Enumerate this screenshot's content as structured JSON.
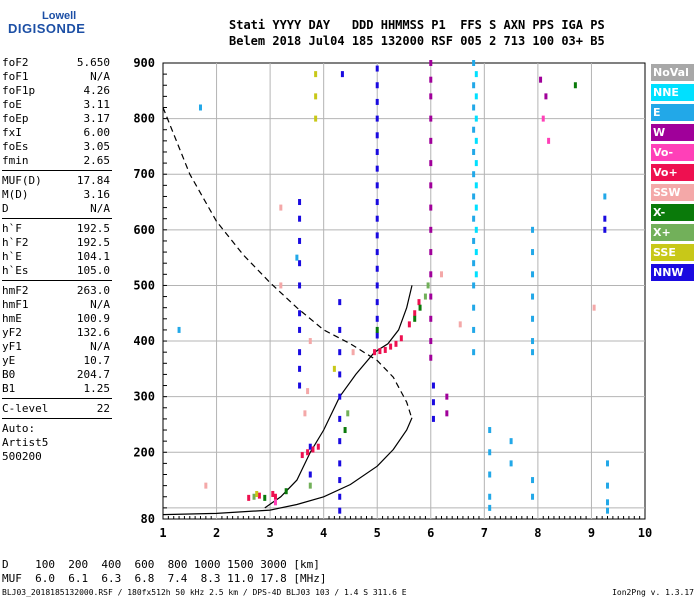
{
  "logo": {
    "top": "Lowell",
    "main": "DIGISONDE"
  },
  "header": {
    "line1": "Stati YYYY DAY   DDD HHMMSS P1  FFS S AXN PPS IGA PS",
    "line2": "Belem 2018 Jul04 185 132000 RSF 005 2 713 100 03+ B5"
  },
  "params": [
    {
      "k": "foF2",
      "v": "5.650"
    },
    {
      "k": "foF1",
      "v": "N/A"
    },
    {
      "k": "foF1p",
      "v": "4.26"
    },
    {
      "k": "foE",
      "v": "3.11"
    },
    {
      "k": "foEp",
      "v": "3.17"
    },
    {
      "k": "fxI",
      "v": "6.00"
    },
    {
      "k": "foEs",
      "v": "3.05"
    },
    {
      "k": "fmin",
      "v": "2.65"
    },
    {
      "sep": true
    },
    {
      "k": "MUF(D)",
      "v": "17.84"
    },
    {
      "k": "M(D)",
      "v": "3.16"
    },
    {
      "k": "D",
      "v": "N/A"
    },
    {
      "sep": true
    },
    {
      "k": "h`F",
      "v": "192.5"
    },
    {
      "k": "h`F2",
      "v": "192.5"
    },
    {
      "k": "h`E",
      "v": "104.1"
    },
    {
      "k": "h`Es",
      "v": "105.0"
    },
    {
      "sep": true
    },
    {
      "k": "hmF2",
      "v": "263.0"
    },
    {
      "k": "hmF1",
      "v": "N/A"
    },
    {
      "k": "hmE",
      "v": "100.9"
    },
    {
      "k": "yF2",
      "v": "132.6"
    },
    {
      "k": "yF1",
      "v": "N/A"
    },
    {
      "k": "yE",
      "v": "10.7"
    },
    {
      "k": "B0",
      "v": "204.7"
    },
    {
      "k": "B1",
      "v": "1.25"
    },
    {
      "sep": true
    },
    {
      "k": "C-level",
      "v": "22"
    },
    {
      "sep": true
    },
    {
      "k": "Auto:",
      "v": ""
    },
    {
      "k": "Artist5",
      "v": ""
    },
    {
      "k": "500200",
      "v": ""
    }
  ],
  "legend": [
    {
      "label": "NoVal",
      "bg": "#a8a8a8",
      "fg": "#ffffff"
    },
    {
      "label": "NNE",
      "bg": "#00e0ff",
      "fg": "#ffffff"
    },
    {
      "label": "E",
      "bg": "#22a8e8",
      "fg": "#ffffff"
    },
    {
      "label": "W",
      "bg": "#a0009a",
      "fg": "#ffffff"
    },
    {
      "label": "Vo-",
      "bg": "#ff40b8",
      "fg": "#ffffff"
    },
    {
      "label": "Vo+",
      "bg": "#ee1050",
      "fg": "#ffffff"
    },
    {
      "label": "SSW",
      "bg": "#f4a8a8",
      "fg": "#ffffff"
    },
    {
      "label": "X-",
      "bg": "#0a7a0a",
      "fg": "#ffffff"
    },
    {
      "label": "X+",
      "bg": "#72b05a",
      "fg": "#ffffff"
    },
    {
      "label": "SSE",
      "bg": "#c8c818",
      "fg": "#ffffff"
    },
    {
      "label": "NNW",
      "bg": "#1a0ae0",
      "fg": "#ffffff"
    }
  ],
  "bottom": {
    "line1": "D    100  200  400  600  800 1000 1500 3000 [km]",
    "line2": "MUF  6.0  6.1  6.3  6.8  7.4  8.3 11.0 17.8 [MHz]"
  },
  "footer": "BLJ03_2018185132000.RSF / 180fx512h 50 kHz 2.5 km / DPS-4D BLJ03 103 / 1.4 S 311.6 E",
  "version": "Ion2Png v. 1.3.17",
  "chart_data": {
    "type": "scatter",
    "title": "",
    "xlabel": "",
    "ylabel": "",
    "xlim": [
      1,
      10
    ],
    "ylim": [
      80,
      900
    ],
    "xticks": [
      1,
      2,
      3,
      4,
      5,
      6,
      7,
      8,
      9,
      10
    ],
    "yticks": [
      100,
      200,
      300,
      400,
      500,
      600,
      700,
      800,
      900
    ],
    "ytick_labels_shown": [
      80,
      200,
      300,
      400,
      500,
      600,
      700,
      800,
      900
    ],
    "grid": true,
    "legend_position": "right",
    "series": [
      {
        "name": "NNW",
        "color": "#1a0ae0",
        "points": [
          [
            3.55,
            650
          ],
          [
            3.55,
            620
          ],
          [
            3.55,
            580
          ],
          [
            3.55,
            540
          ],
          [
            3.55,
            500
          ],
          [
            3.55,
            450
          ],
          [
            3.55,
            420
          ],
          [
            3.55,
            380
          ],
          [
            3.55,
            350
          ],
          [
            3.55,
            320
          ],
          [
            3.75,
            160
          ],
          [
            3.75,
            210
          ],
          [
            4.3,
            470
          ],
          [
            4.3,
            420
          ],
          [
            4.3,
            380
          ],
          [
            4.3,
            340
          ],
          [
            4.3,
            300
          ],
          [
            4.3,
            260
          ],
          [
            4.3,
            220
          ],
          [
            4.3,
            180
          ],
          [
            4.3,
            150
          ],
          [
            4.3,
            120
          ],
          [
            4.3,
            95
          ],
          [
            4.35,
            880
          ],
          [
            5.0,
            890
          ],
          [
            5.0,
            860
          ],
          [
            5.0,
            830
          ],
          [
            5.0,
            800
          ],
          [
            5.0,
            770
          ],
          [
            5.0,
            740
          ],
          [
            5.0,
            710
          ],
          [
            5.0,
            680
          ],
          [
            5.0,
            650
          ],
          [
            5.0,
            620
          ],
          [
            5.0,
            590
          ],
          [
            5.0,
            560
          ],
          [
            5.0,
            530
          ],
          [
            5.0,
            500
          ],
          [
            5.0,
            470
          ],
          [
            5.0,
            440
          ],
          [
            5.0,
            410
          ],
          [
            6.05,
            320
          ],
          [
            6.05,
            290
          ],
          [
            6.05,
            260
          ],
          [
            9.25,
            620
          ],
          [
            9.25,
            600
          ]
        ]
      },
      {
        "name": "W",
        "color": "#a0009a",
        "points": [
          [
            6.0,
            900
          ],
          [
            6.0,
            870
          ],
          [
            6.0,
            840
          ],
          [
            6.0,
            800
          ],
          [
            6.0,
            760
          ],
          [
            6.0,
            720
          ],
          [
            6.0,
            680
          ],
          [
            6.0,
            640
          ],
          [
            6.0,
            600
          ],
          [
            6.0,
            560
          ],
          [
            6.0,
            520
          ],
          [
            6.0,
            480
          ],
          [
            6.0,
            440
          ],
          [
            6.0,
            400
          ],
          [
            6.0,
            370
          ],
          [
            6.3,
            300
          ],
          [
            6.3,
            270
          ],
          [
            8.05,
            870
          ],
          [
            8.15,
            840
          ]
        ]
      },
      {
        "name": "E",
        "color": "#22a8e8",
        "points": [
          [
            6.8,
            900
          ],
          [
            6.8,
            860
          ],
          [
            6.8,
            820
          ],
          [
            6.8,
            780
          ],
          [
            6.8,
            740
          ],
          [
            6.8,
            700
          ],
          [
            6.8,
            660
          ],
          [
            6.8,
            620
          ],
          [
            6.8,
            580
          ],
          [
            6.8,
            540
          ],
          [
            6.8,
            500
          ],
          [
            6.8,
            460
          ],
          [
            6.8,
            420
          ],
          [
            6.8,
            380
          ],
          [
            7.1,
            240
          ],
          [
            7.1,
            200
          ],
          [
            7.1,
            160
          ],
          [
            7.1,
            120
          ],
          [
            7.1,
            100
          ],
          [
            7.9,
            600
          ],
          [
            7.9,
            560
          ],
          [
            7.9,
            520
          ],
          [
            7.9,
            480
          ],
          [
            7.9,
            440
          ],
          [
            7.9,
            400
          ],
          [
            7.9,
            380
          ],
          [
            7.5,
            220
          ],
          [
            7.5,
            180
          ],
          [
            7.9,
            150
          ],
          [
            7.9,
            120
          ],
          [
            9.3,
            180
          ],
          [
            9.3,
            140
          ],
          [
            9.3,
            110
          ],
          [
            9.3,
            95
          ],
          [
            9.25,
            660
          ],
          [
            1.7,
            820
          ],
          [
            1.3,
            420
          ],
          [
            3.5,
            550
          ]
        ]
      },
      {
        "name": "NNE",
        "color": "#00e0ff",
        "points": [
          [
            6.85,
            880
          ],
          [
            6.85,
            840
          ],
          [
            6.85,
            800
          ],
          [
            6.85,
            760
          ],
          [
            6.85,
            720
          ],
          [
            6.85,
            680
          ],
          [
            6.85,
            640
          ],
          [
            6.85,
            600
          ],
          [
            6.85,
            560
          ],
          [
            6.85,
            520
          ]
        ]
      },
      {
        "name": "Vo+",
        "color": "#ee1050",
        "points": [
          [
            4.95,
            380
          ],
          [
            5.05,
            382
          ],
          [
            5.15,
            384
          ],
          [
            5.25,
            390
          ],
          [
            5.35,
            395
          ],
          [
            5.45,
            405
          ],
          [
            5.6,
            430
          ],
          [
            5.7,
            450
          ],
          [
            5.78,
            470
          ],
          [
            3.6,
            195
          ],
          [
            3.7,
            200
          ],
          [
            3.8,
            205
          ],
          [
            3.9,
            210
          ],
          [
            2.6,
            118
          ],
          [
            2.8,
            122
          ],
          [
            3.05,
            125
          ],
          [
            3.1,
            120
          ]
        ]
      },
      {
        "name": "Vo-",
        "color": "#ff40b8",
        "points": [
          [
            8.1,
            800
          ],
          [
            8.2,
            760
          ],
          [
            3.1,
            110
          ]
        ]
      },
      {
        "name": "SSW",
        "color": "#f4a8a8",
        "points": [
          [
            3.65,
            270
          ],
          [
            3.7,
            310
          ],
          [
            3.75,
            400
          ],
          [
            4.55,
            380
          ],
          [
            6.2,
            520
          ],
          [
            6.55,
            430
          ],
          [
            9.05,
            460
          ],
          [
            1.8,
            140
          ],
          [
            3.2,
            500
          ],
          [
            3.2,
            640
          ]
        ]
      },
      {
        "name": "X-",
        "color": "#0a7a0a",
        "points": [
          [
            5.0,
            420
          ],
          [
            5.7,
            440
          ],
          [
            5.8,
            460
          ],
          [
            4.4,
            240
          ],
          [
            3.3,
            130
          ],
          [
            2.9,
            118
          ],
          [
            8.7,
            860
          ]
        ]
      },
      {
        "name": "X+",
        "color": "#72b05a",
        "points": [
          [
            4.45,
            270
          ],
          [
            5.9,
            480
          ],
          [
            5.95,
            500
          ],
          [
            3.75,
            140
          ],
          [
            2.7,
            120
          ]
        ]
      },
      {
        "name": "SSE",
        "color": "#c8c818",
        "points": [
          [
            3.85,
            880
          ],
          [
            3.85,
            840
          ],
          [
            3.85,
            800
          ],
          [
            2.75,
            125
          ],
          [
            4.2,
            350
          ]
        ]
      },
      {
        "name": "NoVal",
        "color": "#a8a8a8",
        "points": []
      }
    ],
    "curves": [
      {
        "style": "dashed",
        "points": [
          [
            1.0,
            820
          ],
          [
            1.5,
            700
          ],
          [
            2.0,
            615
          ],
          [
            2.5,
            555
          ],
          [
            3.0,
            505
          ],
          [
            3.5,
            460
          ],
          [
            4.0,
            420
          ],
          [
            4.5,
            395
          ],
          [
            5.0,
            365
          ],
          [
            5.3,
            335
          ],
          [
            5.55,
            290
          ],
          [
            5.65,
            260
          ]
        ]
      },
      {
        "style": "solid",
        "points": [
          [
            1.0,
            88
          ],
          [
            2.0,
            90
          ],
          [
            3.0,
            96
          ],
          [
            3.5,
            106
          ],
          [
            4.0,
            120
          ],
          [
            4.5,
            142
          ],
          [
            5.0,
            175
          ],
          [
            5.3,
            205
          ],
          [
            5.55,
            240
          ],
          [
            5.65,
            262
          ]
        ]
      },
      {
        "style": "solid",
        "points": [
          [
            2.9,
            100
          ],
          [
            3.2,
            120
          ],
          [
            3.5,
            150
          ],
          [
            3.75,
            200
          ],
          [
            4.0,
            240
          ],
          [
            4.3,
            300
          ],
          [
            4.6,
            340
          ],
          [
            4.95,
            380
          ],
          [
            5.2,
            395
          ],
          [
            5.4,
            420
          ],
          [
            5.55,
            460
          ],
          [
            5.65,
            500
          ]
        ]
      }
    ]
  }
}
